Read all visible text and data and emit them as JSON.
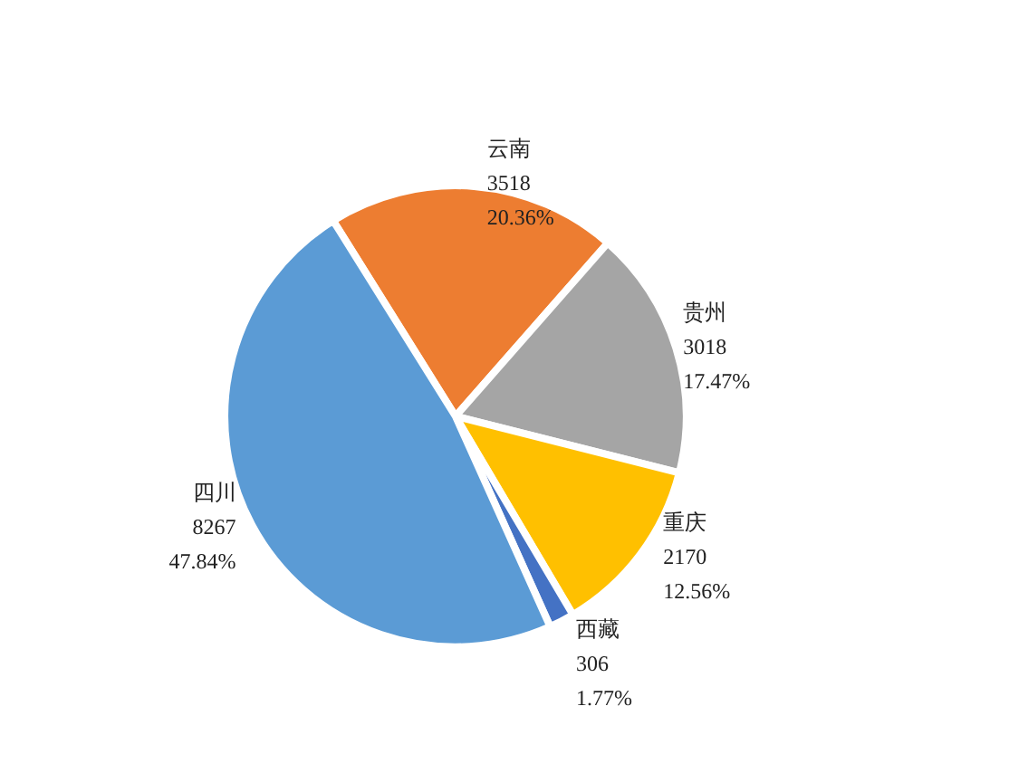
{
  "chart_data": {
    "type": "pie",
    "categories": [
      "云南",
      "贵州",
      "重庆",
      "西藏",
      "四川"
    ],
    "values": [
      20.36,
      17.47,
      12.56,
      1.77,
      47.84
    ],
    "value_labels": [
      "3518\n20.36%",
      "3018\n17.47%",
      "2170\n12.56%",
      "306\n1.77%",
      "8267\n47.84%"
    ],
    "colors": [
      "#ed7d31",
      "#a5a5a5",
      "#ffc000",
      "#4472c4",
      "#5b9bd5"
    ],
    "legend": false
  }
}
